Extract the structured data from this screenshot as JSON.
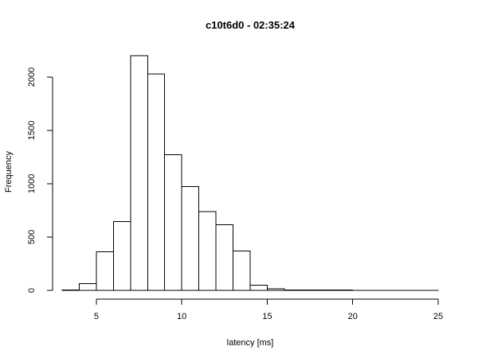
{
  "chart_data": {
    "type": "bar",
    "subtype": "histogram",
    "title": "c10t6d0 - 02:35:24",
    "xlabel": "latency [ms]",
    "ylabel": "Frequency",
    "bin_width": 1,
    "bins": [
      {
        "x0": 3,
        "x1": 4,
        "value": 5
      },
      {
        "x0": 4,
        "x1": 5,
        "value": 65
      },
      {
        "x0": 5,
        "x1": 6,
        "value": 360
      },
      {
        "x0": 6,
        "x1": 7,
        "value": 645
      },
      {
        "x0": 7,
        "x1": 8,
        "value": 2200
      },
      {
        "x0": 8,
        "x1": 9,
        "value": 2030
      },
      {
        "x0": 9,
        "x1": 10,
        "value": 1270
      },
      {
        "x0": 10,
        "x1": 11,
        "value": 975
      },
      {
        "x0": 11,
        "x1": 12,
        "value": 740
      },
      {
        "x0": 12,
        "x1": 13,
        "value": 615
      },
      {
        "x0": 13,
        "x1": 14,
        "value": 370
      },
      {
        "x0": 14,
        "x1": 15,
        "value": 50
      },
      {
        "x0": 15,
        "x1": 16,
        "value": 15
      },
      {
        "x0": 16,
        "x1": 17,
        "value": 5
      },
      {
        "x0": 17,
        "x1": 18,
        "value": 3
      },
      {
        "x0": 18,
        "x1": 19,
        "value": 2
      },
      {
        "x0": 19,
        "x1": 20,
        "value": 2
      },
      {
        "x0": 20,
        "x1": 21,
        "value": 1
      },
      {
        "x0": 21,
        "x1": 22,
        "value": 1
      },
      {
        "x0": 22,
        "x1": 23,
        "value": 1
      },
      {
        "x0": 23,
        "x1": 24,
        "value": 1
      },
      {
        "x0": 24,
        "x1": 25,
        "value": 1
      }
    ],
    "xlim": [
      3,
      25
    ],
    "ylim": [
      0,
      2200
    ],
    "x_ticks": [
      {
        "value": 5,
        "label": "5"
      },
      {
        "value": 10,
        "label": "10"
      },
      {
        "value": 15,
        "label": "15"
      },
      {
        "value": 20,
        "label": "20"
      },
      {
        "value": 25,
        "label": "25"
      }
    ],
    "y_ticks": [
      {
        "value": 0,
        "label": "0"
      },
      {
        "value": 500,
        "label": "500"
      },
      {
        "value": 1000,
        "label": "1000"
      },
      {
        "value": 1500,
        "label": "1500"
      },
      {
        "value": 2000,
        "label": "2000"
      }
    ],
    "grid": false,
    "legend": "none"
  }
}
